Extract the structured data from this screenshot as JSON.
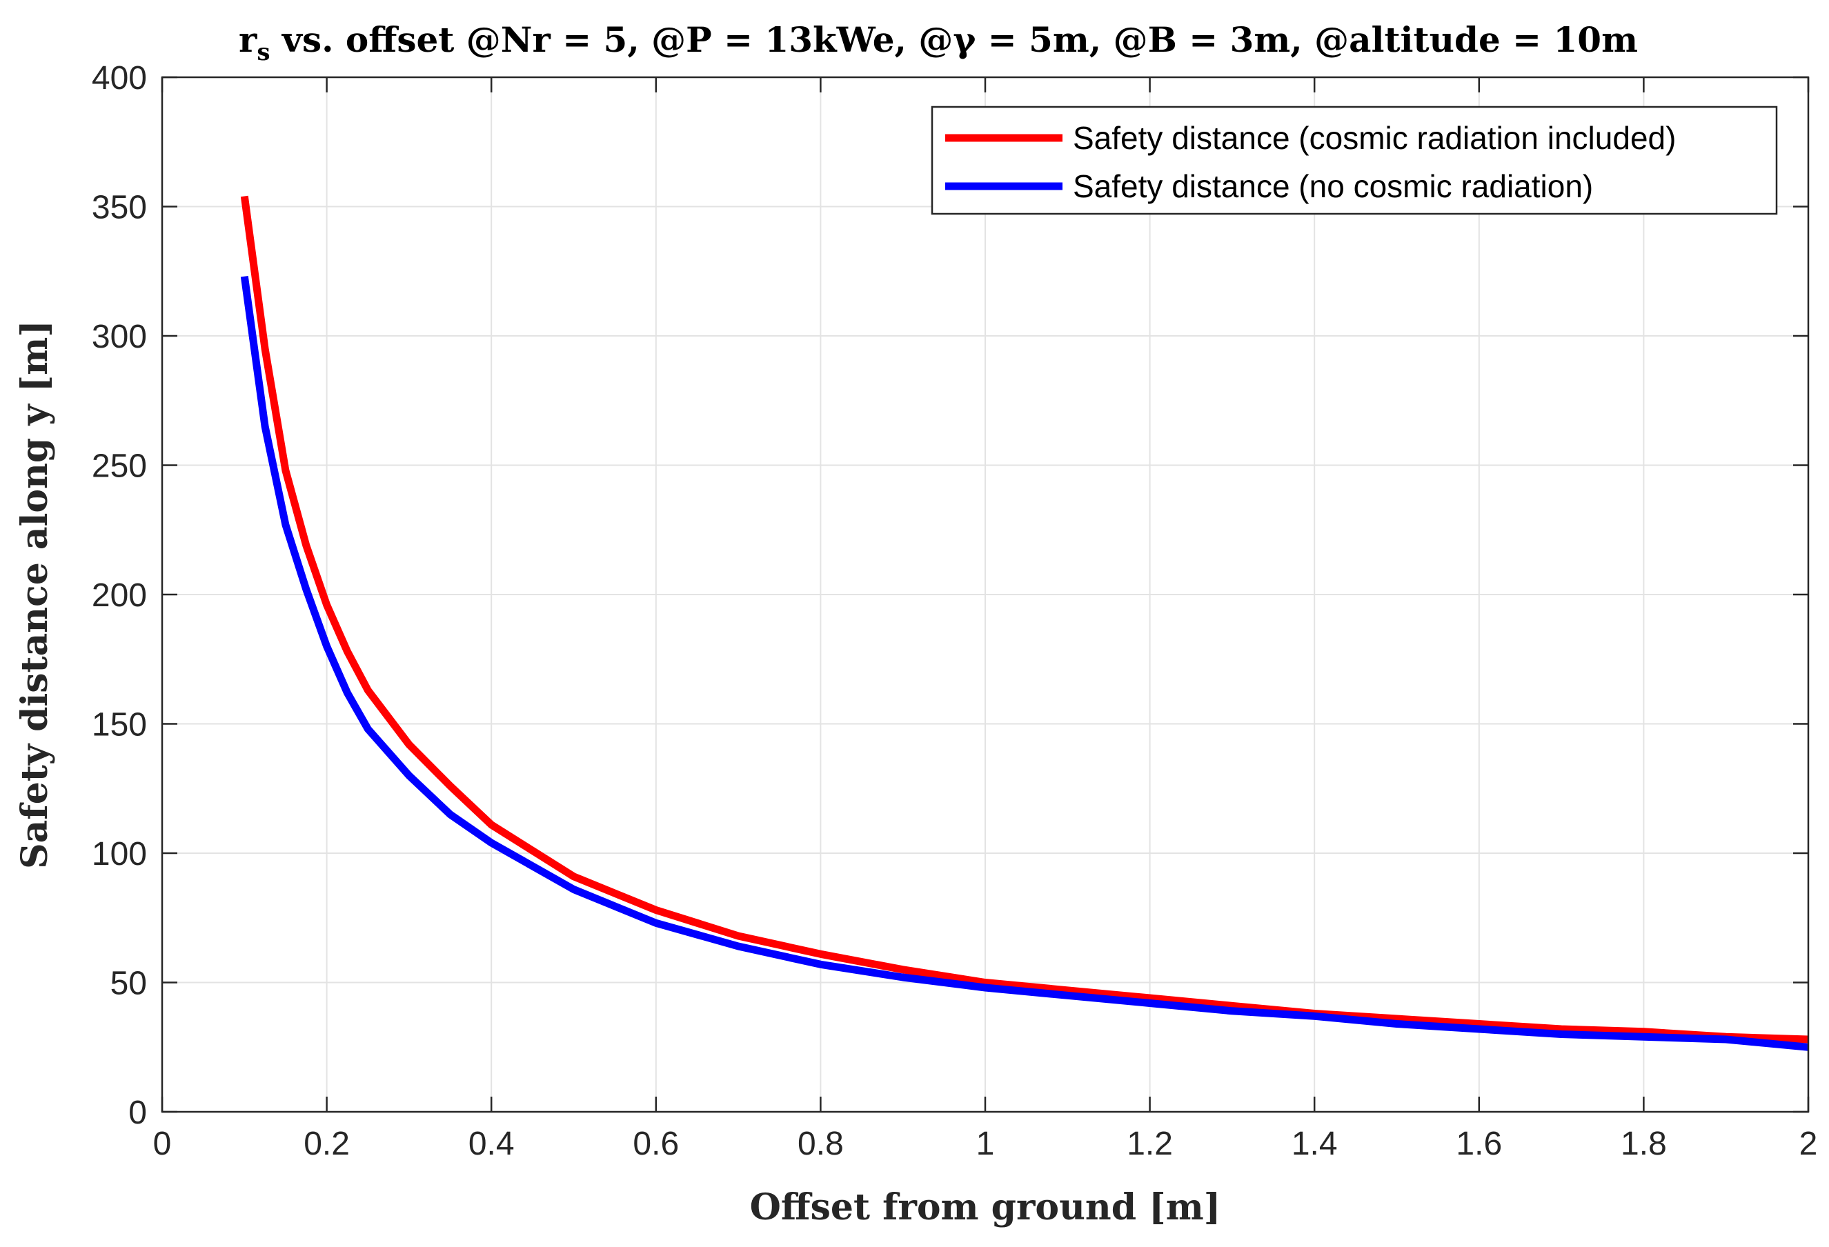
{
  "chart_data": {
    "type": "line",
    "title": "r_s vs. offset @Nr = 5, @P = 13kWe, @γ = 5m, @B = 3m, @altitude = 10m",
    "title_parts": {
      "r": "r",
      "s": "s",
      "rest": " vs. offset @Nr = 5, @P = 13kWe, @γ = 5m, @B = 3m, @altitude = 10m"
    },
    "xlabel": "Offset from ground [m]",
    "ylabel": "Safety distance along y [m]",
    "xlim": [
      0,
      2
    ],
    "ylim": [
      0,
      400
    ],
    "xticks": [
      0,
      0.2,
      0.4,
      0.6,
      0.8,
      1,
      1.2,
      1.4,
      1.6,
      1.8,
      2
    ],
    "xtick_labels": [
      "0",
      "0.2",
      "0.4",
      "0.6",
      "0.8",
      "1",
      "1.2",
      "1.4",
      "1.6",
      "1.8",
      "2"
    ],
    "yticks": [
      0,
      50,
      100,
      150,
      200,
      250,
      300,
      350,
      400
    ],
    "ytick_labels": [
      "0",
      "50",
      "100",
      "150",
      "200",
      "250",
      "300",
      "350",
      "400"
    ],
    "grid": true,
    "legend_position": "top-right",
    "x": [
      0.1,
      0.125,
      0.15,
      0.175,
      0.2,
      0.225,
      0.25,
      0.3,
      0.35,
      0.4,
      0.5,
      0.6,
      0.7,
      0.8,
      0.9,
      1.0,
      1.1,
      1.2,
      1.3,
      1.4,
      1.5,
      1.6,
      1.7,
      1.8,
      1.9,
      2.0
    ],
    "series": [
      {
        "name": "Safety distance (cosmic radiation included)",
        "color": "#ff0000",
        "values": [
          354,
          295,
          248,
          219,
          196,
          178,
          163,
          142,
          126,
          111,
          91,
          78,
          68,
          61,
          55,
          50,
          47,
          44,
          41,
          38,
          36,
          34,
          32,
          31,
          29,
          28
        ]
      },
      {
        "name": "Safety distance (no cosmic radiation)",
        "color": "#0000ff",
        "values": [
          323,
          265,
          227,
          202,
          180,
          162,
          148,
          130,
          115,
          104,
          86,
          73,
          64,
          57,
          52,
          48,
          45,
          42,
          39,
          37,
          34,
          32,
          30,
          29,
          28,
          25
        ]
      }
    ]
  }
}
